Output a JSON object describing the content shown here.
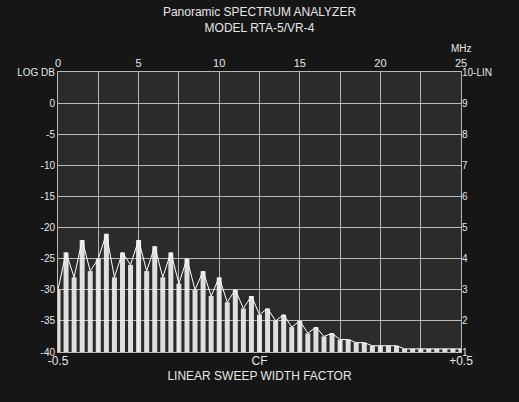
{
  "chart_data": {
    "type": "area",
    "title": "Panoramic SPECTRUM ANALYZER",
    "subtitle": "MODEL RTA-5/VR-4",
    "x_label": "MHz",
    "x2_label": "LINEAR SWEEP WIDTH FACTOR",
    "x": [
      0,
      0.5,
      1,
      1.5,
      2,
      2.5,
      3,
      3.5,
      4,
      4.5,
      5,
      5.5,
      6,
      6.5,
      7,
      7.5,
      8,
      8.5,
      9,
      9.5,
      10,
      10.5,
      11,
      11.5,
      12,
      12.5,
      13,
      13.5,
      14,
      14.5,
      15,
      15.5,
      16,
      16.5,
      17,
      17.5,
      18,
      18.5,
      19,
      19.5,
      20,
      20.5,
      21,
      21.5,
      22,
      22.5,
      23,
      23.5,
      24,
      24.5,
      25
    ],
    "values": [
      -30,
      -24,
      -28,
      -22,
      -27,
      -25,
      -21,
      -28,
      -24,
      -26,
      -22,
      -27,
      -23,
      -28,
      -24,
      -29,
      -25,
      -30,
      -27,
      -31,
      -28,
      -32,
      -30,
      -33,
      -31,
      -34,
      -33,
      -35,
      -34,
      -36,
      -35,
      -37,
      -36,
      -37.5,
      -37,
      -38,
      -38,
      -38.5,
      -38.5,
      -39,
      -39,
      -39,
      -39,
      -39.5,
      -39.5,
      -39.5,
      -39.5,
      -39.5,
      -39.5,
      -39.5,
      -39.5
    ],
    "color": "#ffffff",
    "xlim": [
      0,
      25
    ],
    "xticks": [
      0,
      5,
      10,
      15,
      20,
      25
    ],
    "x2lim": [
      -0.5,
      0.5
    ],
    "x2ticks": [
      -0.5,
      {
        "value": 0,
        "label": "CF"
      },
      {
        "value": 0.5,
        "label": "+0.5"
      }
    ],
    "ylim": [
      -40,
      5
    ],
    "yticks": [
      -40,
      -35,
      -30,
      -25,
      -20,
      -15,
      -10,
      -5,
      0,
      {
        "value": 5,
        "label": "LOG DB"
      }
    ],
    "y2lim": [
      1,
      10
    ],
    "y2ticks": [
      1,
      2,
      3,
      4,
      5,
      6,
      7,
      8,
      9,
      {
        "value": 10,
        "label": "10-LIN"
      }
    ],
    "grid": true
  }
}
